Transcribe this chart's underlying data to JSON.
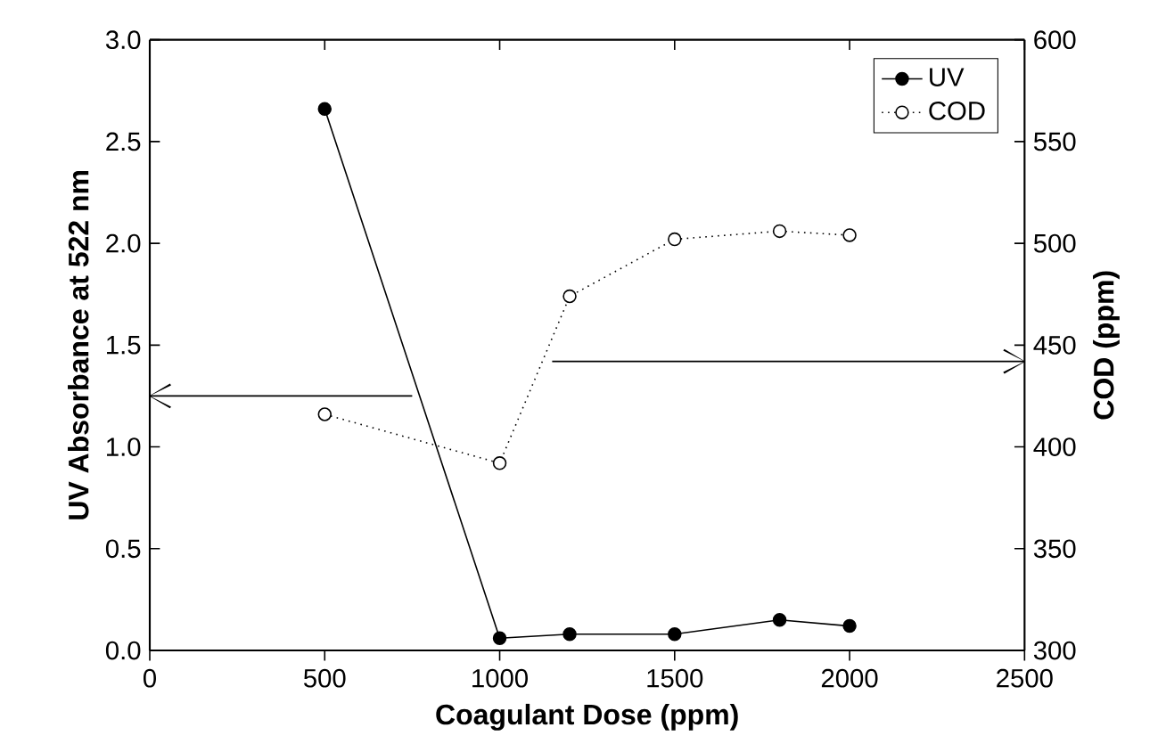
{
  "chart_data": {
    "type": "line",
    "xlabel": "Coagulant Dose (ppm)",
    "ylabel": "UV Absorbance at 522 nm",
    "y2label": "COD (ppm)",
    "x": [
      500,
      1000,
      1200,
      1500,
      1800,
      2000
    ],
    "xlim": [
      0,
      2500
    ],
    "xticks": [
      0,
      500,
      1000,
      1500,
      2000,
      2500
    ],
    "ylim": [
      0,
      3
    ],
    "yticks": [
      {
        "value": 0,
        "label": "0.0"
      },
      {
        "value": 0.5,
        "label": "0.5"
      },
      {
        "value": 1,
        "label": "1.0"
      },
      {
        "value": 1.5,
        "label": "1.5"
      },
      {
        "value": 2,
        "label": "2.0"
      },
      {
        "value": 2.5,
        "label": "2.5"
      },
      {
        "value": 3,
        "label": "3.0"
      }
    ],
    "y2lim": [
      300,
      600
    ],
    "y2ticks": [
      300,
      350,
      400,
      450,
      500,
      550,
      600
    ],
    "legend": "top right",
    "grid": false,
    "series": [
      {
        "name": "UV",
        "color": "#000000",
        "values": [
          2.66,
          0.06,
          0.08,
          0.08,
          0.15,
          0.12
        ],
        "marker": "circle",
        "line_style": "solid"
      },
      {
        "name": "COD",
        "color": "#000000",
        "axis": "y2",
        "values": [
          416,
          392,
          474,
          502,
          506,
          504
        ],
        "marker": "circle",
        "line_style": "dotted"
      }
    ]
  }
}
